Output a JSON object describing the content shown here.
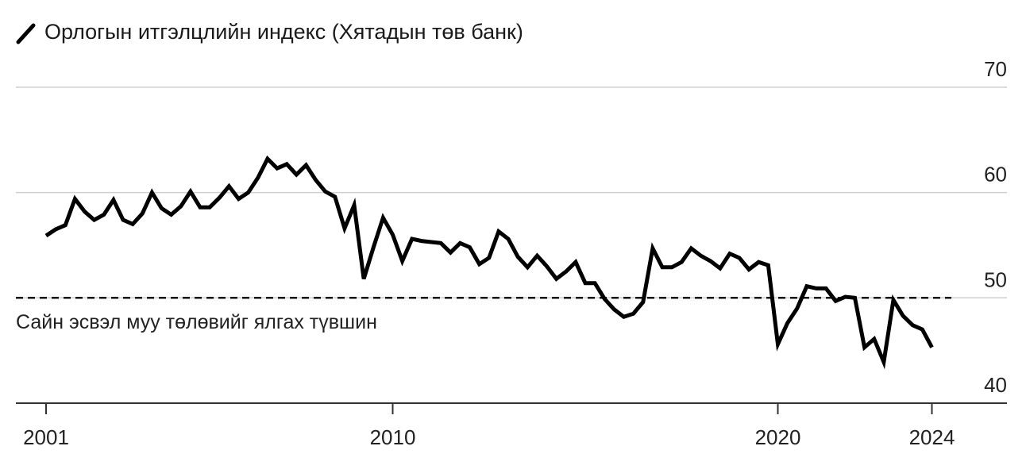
{
  "chart_data": {
    "type": "line",
    "series": [
      {
        "name": "Орлогын итгэлцлийн индекс (Хятадын төв банк)",
        "color": "#000000",
        "points": [
          [
            2001.0,
            55.9
          ],
          [
            2001.25,
            56.5
          ],
          [
            2001.5,
            56.9
          ],
          [
            2001.75,
            59.4
          ],
          [
            2002.0,
            58.2
          ],
          [
            2002.25,
            57.4
          ],
          [
            2002.5,
            57.9
          ],
          [
            2002.75,
            59.3
          ],
          [
            2003.0,
            57.4
          ],
          [
            2003.25,
            57.0
          ],
          [
            2003.5,
            58.0
          ],
          [
            2003.75,
            60.0
          ],
          [
            2004.0,
            58.5
          ],
          [
            2004.25,
            57.9
          ],
          [
            2004.5,
            58.7
          ],
          [
            2004.75,
            60.1
          ],
          [
            2005.0,
            58.6
          ],
          [
            2005.25,
            58.6
          ],
          [
            2005.5,
            59.5
          ],
          [
            2005.75,
            60.6
          ],
          [
            2006.0,
            59.4
          ],
          [
            2006.25,
            60.0
          ],
          [
            2006.5,
            61.4
          ],
          [
            2006.75,
            63.2
          ],
          [
            2007.0,
            62.3
          ],
          [
            2007.25,
            62.7
          ],
          [
            2007.5,
            61.7
          ],
          [
            2007.75,
            62.6
          ],
          [
            2008.0,
            61.2
          ],
          [
            2008.25,
            60.1
          ],
          [
            2008.5,
            59.6
          ],
          [
            2008.75,
            56.6
          ],
          [
            2009.0,
            58.8
          ],
          [
            2009.25,
            51.8
          ],
          [
            2009.5,
            54.8
          ],
          [
            2009.75,
            57.6
          ],
          [
            2010.0,
            56.0
          ],
          [
            2010.25,
            53.5
          ],
          [
            2010.5,
            55.6
          ],
          [
            2010.75,
            55.4
          ],
          [
            2011.0,
            55.3
          ],
          [
            2011.25,
            55.2
          ],
          [
            2011.5,
            54.3
          ],
          [
            2011.75,
            55.2
          ],
          [
            2012.0,
            54.8
          ],
          [
            2012.25,
            53.2
          ],
          [
            2012.5,
            53.8
          ],
          [
            2012.75,
            56.3
          ],
          [
            2013.0,
            55.6
          ],
          [
            2013.25,
            53.9
          ],
          [
            2013.5,
            52.9
          ],
          [
            2013.75,
            54.0
          ],
          [
            2014.0,
            53.0
          ],
          [
            2014.25,
            51.8
          ],
          [
            2014.5,
            52.5
          ],
          [
            2014.75,
            53.4
          ],
          [
            2015.0,
            51.4
          ],
          [
            2015.25,
            51.4
          ],
          [
            2015.5,
            49.9
          ],
          [
            2015.75,
            48.9
          ],
          [
            2016.0,
            48.2
          ],
          [
            2016.25,
            48.5
          ],
          [
            2016.5,
            49.6
          ],
          [
            2016.75,
            54.7
          ],
          [
            2017.0,
            52.9
          ],
          [
            2017.25,
            52.9
          ],
          [
            2017.5,
            53.4
          ],
          [
            2017.75,
            54.7
          ],
          [
            2018.0,
            54.0
          ],
          [
            2018.25,
            53.5
          ],
          [
            2018.5,
            52.8
          ],
          [
            2018.75,
            54.2
          ],
          [
            2019.0,
            53.8
          ],
          [
            2019.25,
            52.7
          ],
          [
            2019.5,
            53.4
          ],
          [
            2019.75,
            53.1
          ],
          [
            2020.0,
            45.6
          ],
          [
            2020.25,
            47.6
          ],
          [
            2020.5,
            49.0
          ],
          [
            2020.75,
            51.1
          ],
          [
            2021.0,
            50.9
          ],
          [
            2021.25,
            50.9
          ],
          [
            2021.5,
            49.7
          ],
          [
            2021.75,
            50.1
          ],
          [
            2022.0,
            50.0
          ],
          [
            2022.25,
            45.3
          ],
          [
            2022.5,
            46.1
          ],
          [
            2022.75,
            43.9
          ],
          [
            2023.0,
            49.8
          ],
          [
            2023.25,
            48.3
          ],
          [
            2023.5,
            47.4
          ],
          [
            2023.75,
            47.0
          ],
          [
            2024.0,
            45.3
          ]
        ]
      }
    ],
    "xlim": [
      2000.6,
      2025.2
    ],
    "ylim": [
      38.5,
      73
    ],
    "xticks": [
      2001,
      2010,
      2020,
      2024
    ],
    "yticks": [
      40,
      50,
      60,
      70
    ],
    "grid": true,
    "reference_line": {
      "y": 50,
      "label": "Сайн эсвэл муу төлөвийг ялгах түвшин"
    },
    "legend_position": "top-left"
  }
}
